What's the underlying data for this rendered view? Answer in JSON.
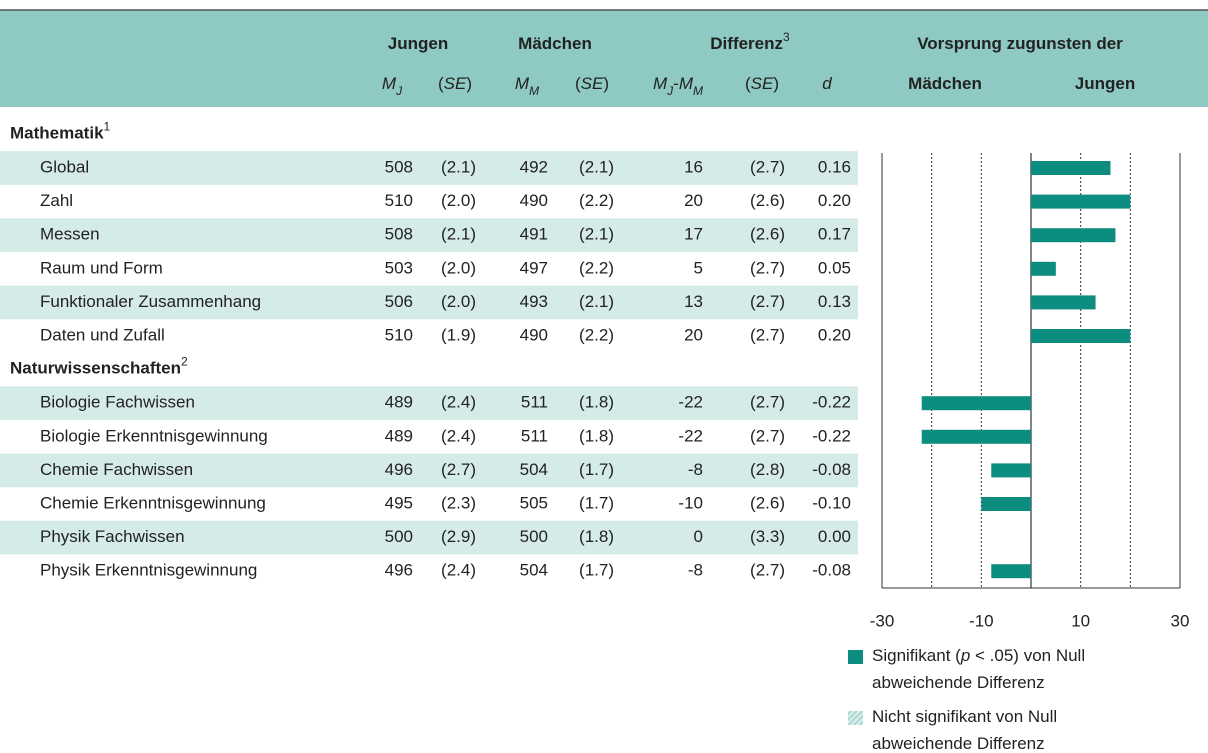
{
  "header": {
    "groups": [
      [
        {
          "t": "Jungen"
        }
      ],
      [
        {
          "t": "Mädchen"
        }
      ],
      [
        {
          "t": "Differenz"
        },
        {
          "t": "3",
          "style": "sup"
        }
      ],
      [
        {
          "t": "Vorsprung zugunsten der"
        }
      ]
    ],
    "sub": [
      [
        {
          "t": "M",
          "style": "i"
        },
        {
          "t": "J",
          "style": "sub"
        }
      ],
      [
        {
          "t": "("
        },
        {
          "t": "SE",
          "style": "i"
        },
        {
          "t": ")"
        }
      ],
      [
        {
          "t": "M",
          "style": "i"
        },
        {
          "t": "M",
          "style": "sub"
        }
      ],
      [
        {
          "t": "("
        },
        {
          "t": "SE",
          "style": "i"
        },
        {
          "t": ")"
        }
      ],
      [
        {
          "t": "M",
          "style": "i"
        },
        {
          "t": "J",
          "style": "sub"
        },
        {
          "t": "-"
        },
        {
          "t": "M",
          "style": "i"
        },
        {
          "t": "M",
          "style": "sub"
        }
      ],
      [
        {
          "t": "("
        },
        {
          "t": "SE",
          "style": "i"
        },
        {
          "t": ")"
        }
      ],
      [
        {
          "t": "d",
          "style": "i"
        }
      ],
      [
        {
          "t": "Mädchen"
        }
      ],
      [
        {
          "t": "Jungen"
        }
      ]
    ]
  },
  "sections": [
    {
      "title": [
        {
          "t": "Mathematik"
        },
        {
          "t": "1",
          "style": "sup"
        }
      ],
      "rows": [
        {
          "label": "Global",
          "mj": 508,
          "sej": "(2.1)",
          "mm": 492,
          "sem": "(2.1)",
          "diff": 16,
          "se": "(2.7)",
          "d": "0.16",
          "significant": true
        },
        {
          "label": "Zahl",
          "mj": 510,
          "sej": "(2.0)",
          "mm": 490,
          "sem": "(2.2)",
          "diff": 20,
          "se": "(2.6)",
          "d": "0.20",
          "significant": true
        },
        {
          "label": "Messen",
          "mj": 508,
          "sej": "(2.1)",
          "mm": 491,
          "sem": "(2.1)",
          "diff": 17,
          "se": "(2.6)",
          "d": "0.17",
          "significant": true
        },
        {
          "label": "Raum und Form",
          "mj": 503,
          "sej": "(2.0)",
          "mm": 497,
          "sem": "(2.2)",
          "diff": 5,
          "se": "(2.7)",
          "d": "0.05",
          "significant": true
        },
        {
          "label": "Funktionaler Zusammenhang",
          "mj": 506,
          "sej": "(2.0)",
          "mm": 493,
          "sem": "(2.1)",
          "diff": 13,
          "se": "(2.7)",
          "d": "0.13",
          "significant": true
        },
        {
          "label": "Daten und Zufall",
          "mj": 510,
          "sej": "(1.9)",
          "mm": 490,
          "sem": "(2.2)",
          "diff": 20,
          "se": "(2.7)",
          "d": "0.20",
          "significant": true
        }
      ]
    },
    {
      "title": [
        {
          "t": "Naturwissenschaften"
        },
        {
          "t": "2",
          "style": "sup"
        }
      ],
      "rows": [
        {
          "label": "Biologie Fachwissen",
          "mj": 489,
          "sej": "(2.4)",
          "mm": 511,
          "sem": "(1.8)",
          "diff": -22,
          "se": "(2.7)",
          "d": "-0.22",
          "significant": true
        },
        {
          "label": "Biologie Erkenntnisgewinnung",
          "mj": 489,
          "sej": "(2.4)",
          "mm": 511,
          "sem": "(1.8)",
          "diff": -22,
          "se": "(2.7)",
          "d": "-0.22",
          "significant": true
        },
        {
          "label": "Chemie Fachwissen",
          "mj": 496,
          "sej": "(2.7)",
          "mm": 504,
          "sem": "(1.7)",
          "diff": -8,
          "se": "(2.8)",
          "d": "-0.08",
          "significant": true
        },
        {
          "label": "Chemie Erkenntnisgewinnung",
          "mj": 495,
          "sej": "(2.3)",
          "mm": 505,
          "sem": "(1.7)",
          "diff": -10,
          "se": "(2.6)",
          "d": "-0.10",
          "significant": true
        },
        {
          "label": "Physik Fachwissen",
          "mj": 500,
          "sej": "(2.9)",
          "mm": 500,
          "sem": "(1.8)",
          "diff": 0,
          "se": "(3.3)",
          "d": "0.00",
          "significant": false
        },
        {
          "label": "Physik Erkenntnisgewinnung",
          "mj": 496,
          "sej": "(2.4)",
          "mm": 504,
          "sem": "(1.7)",
          "diff": -8,
          "se": "(2.7)",
          "d": "-0.08",
          "significant": true
        }
      ]
    }
  ],
  "chart": {
    "xlim": [
      -30,
      30
    ],
    "xticks": [
      -30,
      -10,
      10,
      30
    ],
    "gridlines": [
      -20,
      -10,
      10,
      20
    ],
    "color": "#0d8c80",
    "nonsignificant_color": "#8fc9c3",
    "legend": [
      {
        "significant": true,
        "lines": [
          [
            {
              "t": "Signifikant ("
            },
            {
              "t": "p",
              "style": "i"
            },
            {
              "t": " < .05) von Null"
            }
          ],
          [
            {
              "t": "abweichende Differenz"
            }
          ]
        ]
      },
      {
        "significant": false,
        "lines": [
          [
            {
              "t": "Nicht signifikant von Null"
            }
          ],
          [
            {
              "t": "abweichende Differenz"
            }
          ]
        ]
      }
    ]
  }
}
